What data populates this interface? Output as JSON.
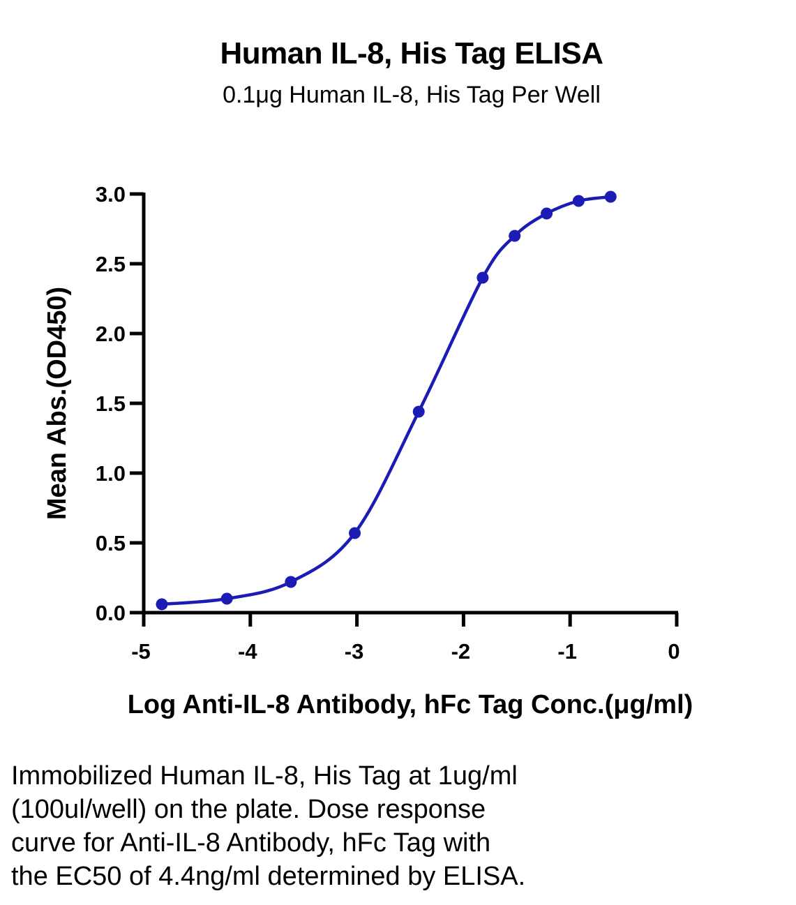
{
  "chart_data": {
    "type": "scatter",
    "title": "Human IL-8, His Tag ELISA",
    "subtitle": "0.1μg Human IL-8, His Tag Per Well",
    "xlabel": "Log Anti-IL-8 Antibody, hFc Tag Conc.(μg/ml)",
    "ylabel": "Mean Abs.(OD450)",
    "xlim": [
      -5,
      0
    ],
    "ylim": [
      0,
      3.0
    ],
    "x_ticks": [
      "-5",
      "-4",
      "-3",
      "-2",
      "-1",
      "0"
    ],
    "y_ticks": [
      "0.0",
      "0.5",
      "1.0",
      "1.5",
      "2.0",
      "2.5",
      "3.0"
    ],
    "grid": false,
    "legend": "none",
    "series": [
      {
        "x": [
          -4.83,
          -4.22,
          -3.62,
          -3.02,
          -2.42,
          -1.82,
          -1.52,
          -1.22,
          -0.92,
          -0.62
        ],
        "y": [
          0.06,
          0.1,
          0.22,
          0.57,
          1.44,
          2.4,
          2.7,
          2.86,
          2.95,
          2.98
        ],
        "color": "#1c1cb4",
        "fit": "4PL sigmoid curve"
      }
    ]
  },
  "caption": {
    "lines": [
      "Immobilized Human IL-8, His Tag at 1ug/ml",
      "(100ul/well) on the plate. Dose response",
      "curve for Anti-IL-8 Antibody, hFc Tag with",
      "the EC50 of 4.4ng/ml determined by ELISA."
    ]
  }
}
